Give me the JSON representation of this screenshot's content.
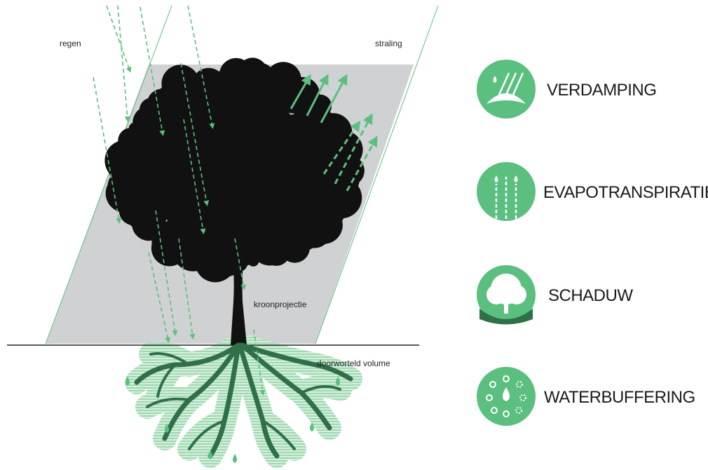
{
  "labels": [
    "regen",
    "straling",
    "kroonprojectie",
    "doorworteld volume"
  ],
  "legend": [
    "VERDAMPING",
    "EVAPOTRANSPIRATIE",
    "SCHADUW",
    "WATERBUFFERING"
  ]
}
